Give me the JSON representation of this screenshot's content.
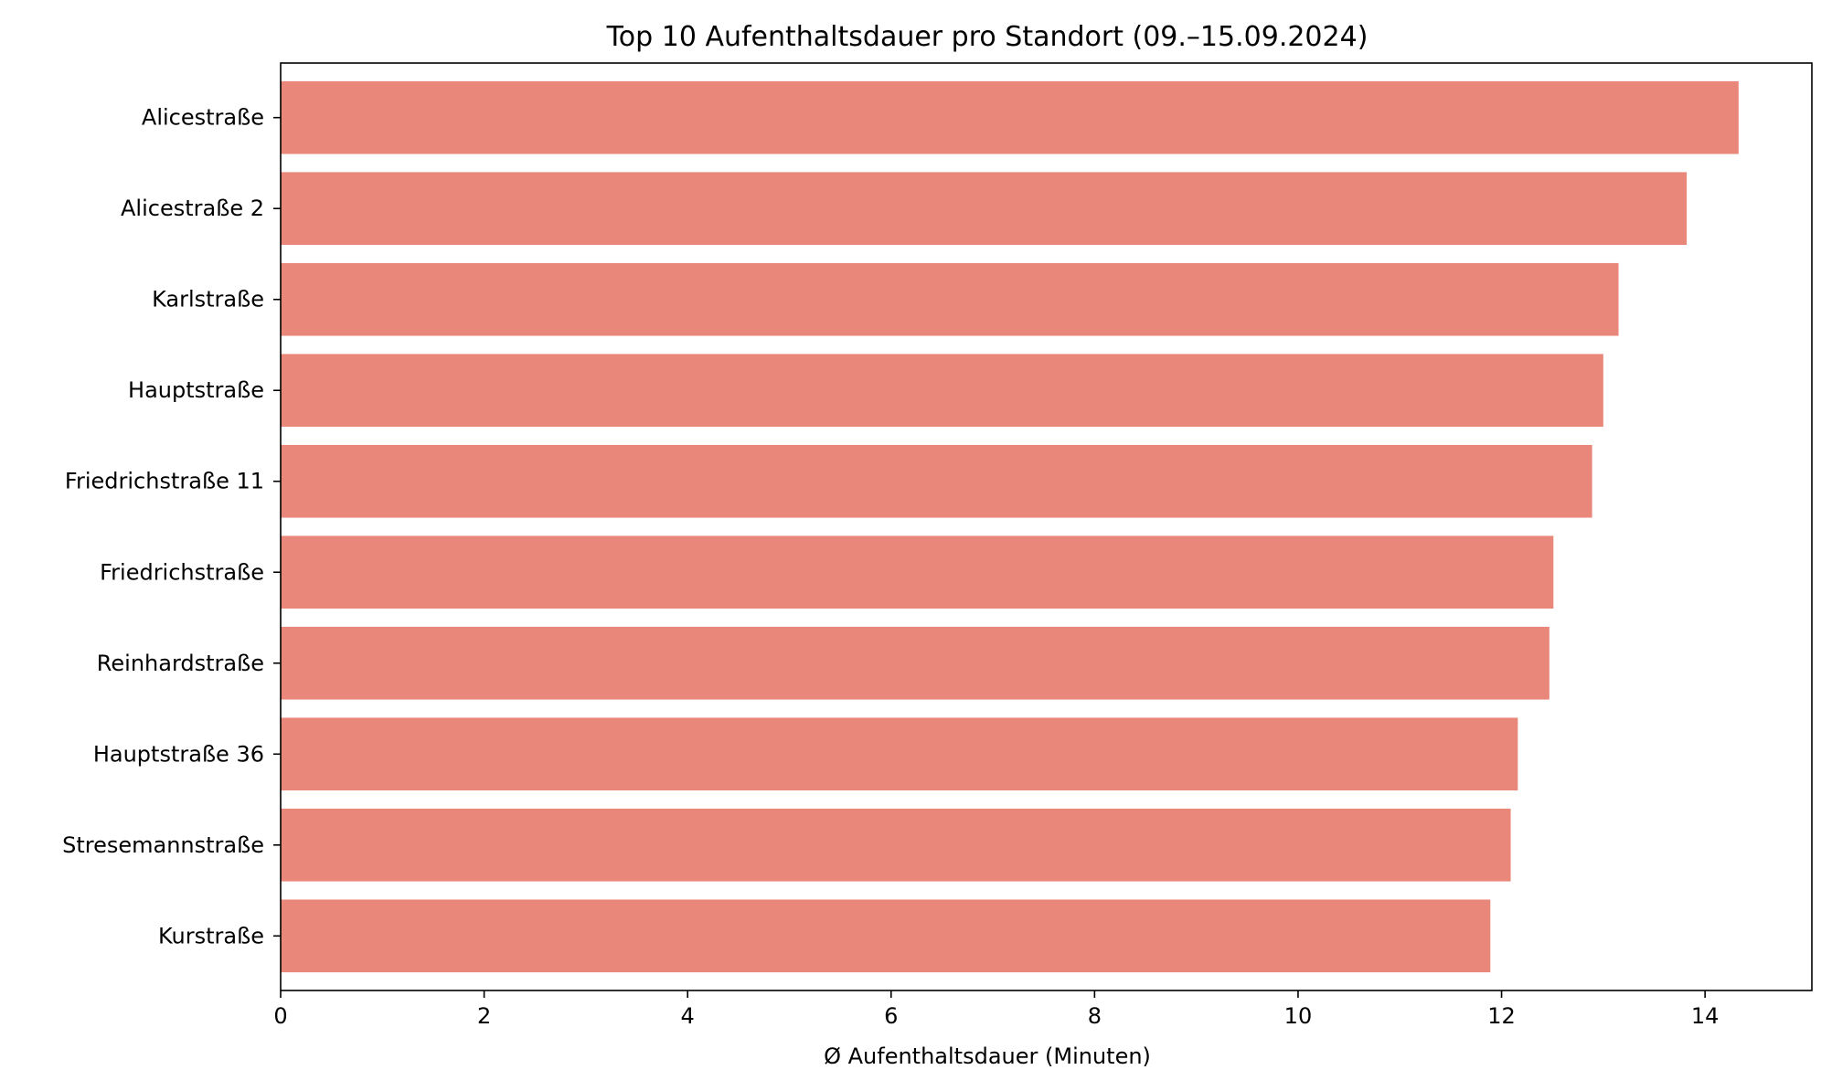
{
  "chart_data": {
    "type": "bar",
    "orientation": "horizontal",
    "title": "Top 10 Aufenthaltsdauer pro Standort (09.–15.09.2024)",
    "xlabel": "Ø Aufenthaltsdauer (Minuten)",
    "ylabel": "",
    "categories": [
      "Alicestraße",
      "Alicestraße 2",
      "Karlstraße",
      "Hauptstraße",
      "Friedrichstraße 11",
      "Friedrichstraße",
      "Reinhardstraße",
      "Hauptstraße 36",
      "Stresemannstraße",
      "Kurstraße"
    ],
    "values": [
      14.33,
      13.82,
      13.15,
      13.0,
      12.89,
      12.51,
      12.47,
      12.16,
      12.09,
      11.89
    ],
    "xlim": [
      0,
      15.05
    ],
    "xticks": [
      0,
      2,
      4,
      6,
      8,
      10,
      12,
      14
    ],
    "bar_color": "#e9877a",
    "grid": false,
    "legend": "none"
  }
}
